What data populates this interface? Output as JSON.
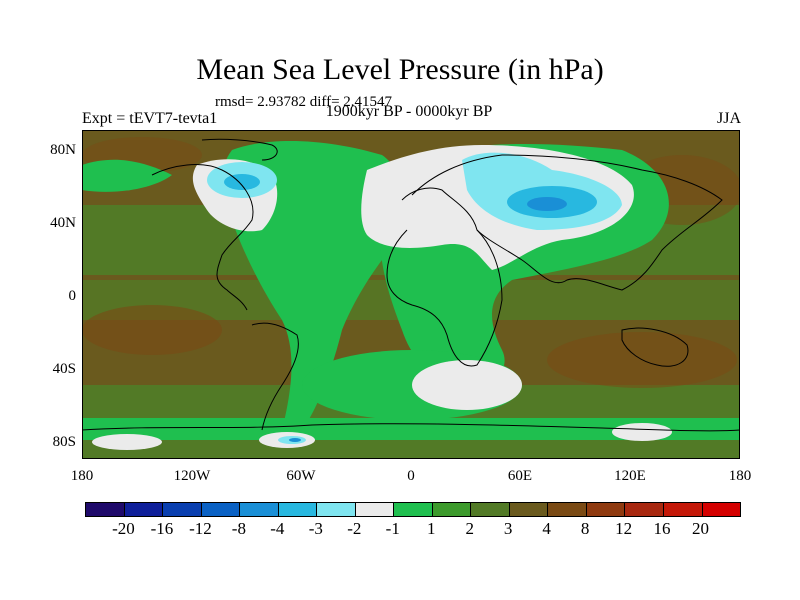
{
  "title": "Mean Sea Level Pressure (in hPa)",
  "stats": "rmsd= 2.93782 diff= 2.41547",
  "period": "1900kyr BP - 0000kyr BP",
  "experiment": "Expt = tEVT7-tevta1",
  "season": "JJA",
  "map": {
    "projection": "cylindrical equidistant",
    "lon_range": [
      -180,
      180
    ],
    "lat_range": [
      -90,
      90
    ],
    "y_ticks": [
      "80N",
      "40N",
      "0",
      "40S",
      "80S"
    ],
    "x_ticks": [
      "180",
      "120W",
      "60W",
      "0",
      "60E",
      "120E",
      "180"
    ],
    "field": "mean sea level pressure anomaly (hPa)"
  },
  "colorbar": {
    "colors": [
      "#1f0a6b",
      "#0f1f9a",
      "#0a3fb0",
      "#0a61c4",
      "#1a8fd6",
      "#28b8e0",
      "#7fe5f0",
      "#ebebeb",
      "#1fbf4f",
      "#3c9a2c",
      "#527a26",
      "#6a5a1e",
      "#7a4a14",
      "#8f3a10",
      "#a82810",
      "#c41808",
      "#d40000"
    ],
    "labels": [
      "-20",
      "-16",
      "-12",
      "-8",
      "-4",
      "-3",
      "-2",
      "-1",
      "1",
      "2",
      "3",
      "4",
      "8",
      "12",
      "16",
      "20"
    ]
  }
}
